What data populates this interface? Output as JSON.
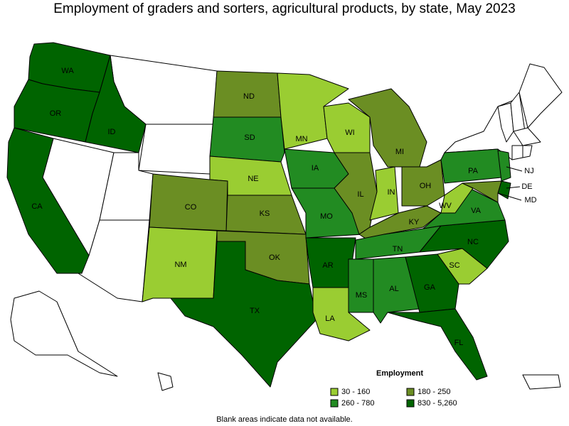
{
  "title": "Employment of graders and sorters, agricultural products, by state, May 2023",
  "legend": {
    "title": "Employment",
    "items": [
      {
        "label": "30 - 160",
        "color": "#9acd32"
      },
      {
        "label": "180 - 250",
        "color": "#6b8e23"
      },
      {
        "label": "260 - 780",
        "color": "#228b22"
      },
      {
        "label": "830 - 5,260",
        "color": "#006400"
      }
    ]
  },
  "note": "Blank areas indicate data not available.",
  "states": [
    {
      "label": "WA",
      "color": "#006400"
    },
    {
      "label": "OR",
      "color": "#006400"
    },
    {
      "label": "ID",
      "color": "#006400"
    },
    {
      "label": "CA",
      "color": "#006400"
    },
    {
      "label": "ND",
      "color": "#6b8e23"
    },
    {
      "label": "SD",
      "color": "#228b22"
    },
    {
      "label": "NE",
      "color": "#9acd32"
    },
    {
      "label": "KS",
      "color": "#6b8e23"
    },
    {
      "label": "CO",
      "color": "#6b8e23"
    },
    {
      "label": "NM",
      "color": "#9acd32"
    },
    {
      "label": "OK",
      "color": "#6b8e23"
    },
    {
      "label": "TX",
      "color": "#006400"
    },
    {
      "label": "MN",
      "color": "#9acd32"
    },
    {
      "label": "WI",
      "color": "#9acd32"
    },
    {
      "label": "IA",
      "color": "#228b22"
    },
    {
      "label": "MO",
      "color": "#228b22"
    },
    {
      "label": "AR",
      "color": "#006400"
    },
    {
      "label": "LA",
      "color": "#9acd32"
    },
    {
      "label": "IL",
      "color": "#6b8e23"
    },
    {
      "label": "IN",
      "color": "#9acd32"
    },
    {
      "label": "MI",
      "color": "#6b8e23"
    },
    {
      "label": "OH",
      "color": "#6b8e23"
    },
    {
      "label": "KY",
      "color": "#6b8e23"
    },
    {
      "label": "TN",
      "color": "#228b22"
    },
    {
      "label": "MS",
      "color": "#228b22"
    },
    {
      "label": "AL",
      "color": "#228b22"
    },
    {
      "label": "GA",
      "color": "#006400"
    },
    {
      "label": "FL",
      "color": "#006400"
    },
    {
      "label": "SC",
      "color": "#9acd32"
    },
    {
      "label": "NC",
      "color": "#006400"
    },
    {
      "label": "VA",
      "color": "#228b22"
    },
    {
      "label": "WV",
      "color": "#9acd32"
    },
    {
      "label": "PA",
      "color": "#228b22"
    },
    {
      "label": "NJ",
      "color": "#228b22"
    },
    {
      "label": "DE",
      "color": "#006400"
    },
    {
      "label": "MD",
      "color": "#6b8e23"
    }
  ]
}
